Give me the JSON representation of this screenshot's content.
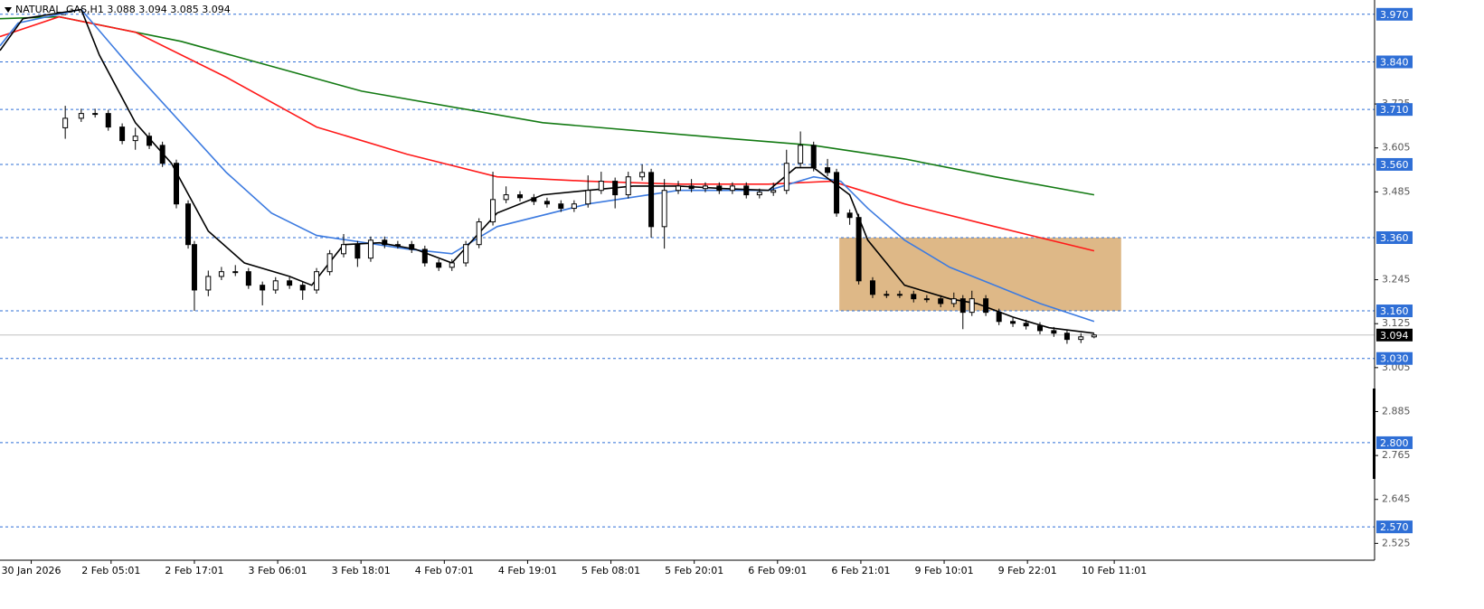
{
  "chart_data": {
    "type": "candlestick",
    "title": "NATURAL_GAS,H1  3.088 3.094 3.085 3.094",
    "xlim": [
      0,
      198
    ],
    "ylim": [
      2.479,
      4.009
    ],
    "xticks": [
      {
        "value": 4.5,
        "label": "30 Jan 2026"
      },
      {
        "value": 16,
        "label": "2 Feb 05:01"
      },
      {
        "value": 28,
        "label": "2 Feb 17:01"
      },
      {
        "value": 40,
        "label": "3 Feb 06:01"
      },
      {
        "value": 52,
        "label": "3 Feb 18:01"
      },
      {
        "value": 64,
        "label": "4 Feb 07:01"
      },
      {
        "value": 76,
        "label": "4 Feb 19:01"
      },
      {
        "value": 88,
        "label": "5 Feb 08:01"
      },
      {
        "value": 100,
        "label": "5 Feb 20:01"
      },
      {
        "value": 112,
        "label": "6 Feb 09:01"
      },
      {
        "value": 124,
        "label": "6 Feb 21:01"
      },
      {
        "value": 136,
        "label": "9 Feb 10:01"
      },
      {
        "value": 148,
        "label": "9 Feb 22:01"
      },
      {
        "value": 160.5,
        "label": "10 Feb 11:01"
      }
    ],
    "yticks": [
      3.725,
      3.605,
      3.485,
      3.245,
      3.125,
      3.005,
      2.885,
      2.765,
      2.645,
      2.525
    ],
    "levels": [
      {
        "value": 3.97,
        "label": "3.970"
      },
      {
        "value": 3.84,
        "label": "3.840"
      },
      {
        "value": 3.71,
        "label": "3.710"
      },
      {
        "value": 3.56,
        "label": "3.560"
      },
      {
        "value": 3.36,
        "label": "3.360"
      },
      {
        "value": 3.16,
        "label": "3.160"
      },
      {
        "value": 3.03,
        "label": "3.030"
      },
      {
        "value": 2.8,
        "label": "2.800"
      },
      {
        "value": 2.57,
        "label": "2.570"
      }
    ],
    "level_color": "#2f6fd6",
    "last_price": 3.094,
    "zone": {
      "x": [
        120.9,
        161.5
      ],
      "y": [
        3.16,
        3.36
      ],
      "color": "#deb887"
    },
    "up_color": "#ffffff",
    "down_color": "#000000",
    "x": [
      9.4,
      11.7,
      13.7,
      15.6,
      17.6,
      19.5,
      21.5,
      23.4,
      25.4,
      27.1,
      28.0,
      30.0,
      31.9,
      33.9,
      35.8,
      37.8,
      39.7,
      41.7,
      43.6,
      45.6,
      47.5,
      49.5,
      51.5,
      53.4,
      55.4,
      57.3,
      59.3,
      61.2,
      63.2,
      65.1,
      67.1,
      69.0,
      71.0,
      72.9,
      74.9,
      76.9,
      78.8,
      80.8,
      82.7,
      84.7,
      86.6,
      88.6,
      90.5,
      92.5,
      93.8,
      95.7,
      97.7,
      99.6,
      101.6,
      103.6,
      105.5,
      107.5,
      109.4,
      111.4,
      113.3,
      115.3,
      117.2,
      119.2,
      120.5,
      122.4,
      123.7,
      125.7,
      127.7,
      129.6,
      131.6,
      133.5,
      135.5,
      137.4,
      138.7,
      140.0,
      142.0,
      143.9,
      145.9,
      147.8,
      149.8,
      151.8,
      153.7,
      155.7,
      157.6
    ],
    "candles": [
      [
        3.66,
        3.72,
        3.63,
        3.686
      ],
      [
        3.686,
        3.712,
        3.676,
        3.699
      ],
      [
        3.699,
        3.712,
        3.688,
        3.699
      ],
      [
        3.699,
        3.709,
        3.652,
        3.662
      ],
      [
        3.662,
        3.672,
        3.615,
        3.625
      ],
      [
        3.625,
        3.66,
        3.6,
        3.637
      ],
      [
        3.637,
        3.647,
        3.602,
        3.612
      ],
      [
        3.612,
        3.622,
        3.553,
        3.563
      ],
      [
        3.563,
        3.573,
        3.44,
        3.452
      ],
      [
        3.452,
        3.462,
        3.33,
        3.341
      ],
      [
        3.341,
        3.351,
        3.16,
        3.217
      ],
      [
        3.217,
        3.27,
        3.2,
        3.254
      ],
      [
        3.254,
        3.28,
        3.244,
        3.267
      ],
      [
        3.267,
        3.285,
        3.255,
        3.267
      ],
      [
        3.267,
        3.277,
        3.22,
        3.23
      ],
      [
        3.23,
        3.24,
        3.175,
        3.217
      ],
      [
        3.217,
        3.252,
        3.207,
        3.242
      ],
      [
        3.242,
        3.252,
        3.22,
        3.23
      ],
      [
        3.23,
        3.24,
        3.19,
        3.217
      ],
      [
        3.217,
        3.277,
        3.207,
        3.267
      ],
      [
        3.267,
        3.326,
        3.257,
        3.316
      ],
      [
        3.316,
        3.37,
        3.306,
        3.341
      ],
      [
        3.341,
        3.351,
        3.28,
        3.304
      ],
      [
        3.304,
        3.363,
        3.294,
        3.353
      ],
      [
        3.353,
        3.363,
        3.331,
        3.341
      ],
      [
        3.341,
        3.351,
        3.33,
        3.341
      ],
      [
        3.341,
        3.351,
        3.318,
        3.328
      ],
      [
        3.328,
        3.338,
        3.281,
        3.291
      ],
      [
        3.291,
        3.301,
        3.269,
        3.279
      ],
      [
        3.279,
        3.301,
        3.269,
        3.291
      ],
      [
        3.291,
        3.351,
        3.281,
        3.341
      ],
      [
        3.341,
        3.413,
        3.331,
        3.403
      ],
      [
        3.403,
        3.54,
        3.393,
        3.464
      ],
      [
        3.464,
        3.5,
        3.454,
        3.477
      ],
      [
        3.477,
        3.487,
        3.459,
        3.469
      ],
      [
        3.469,
        3.479,
        3.449,
        3.459
      ],
      [
        3.459,
        3.469,
        3.442,
        3.452
      ],
      [
        3.452,
        3.462,
        3.43,
        3.44
      ],
      [
        3.44,
        3.462,
        3.43,
        3.452
      ],
      [
        3.452,
        3.53,
        3.442,
        3.489
      ],
      [
        3.489,
        3.54,
        3.479,
        3.514
      ],
      [
        3.514,
        3.524,
        3.44,
        3.477
      ],
      [
        3.477,
        3.54,
        3.467,
        3.526
      ],
      [
        3.526,
        3.56,
        3.516,
        3.538
      ],
      [
        3.538,
        3.548,
        3.36,
        3.39
      ],
      [
        3.39,
        3.52,
        3.33,
        3.489
      ],
      [
        3.489,
        3.515,
        3.479,
        3.501
      ],
      [
        3.501,
        3.52,
        3.484,
        3.494
      ],
      [
        3.494,
        3.511,
        3.484,
        3.501
      ],
      [
        3.501,
        3.511,
        3.479,
        3.489
      ],
      [
        3.489,
        3.511,
        3.479,
        3.501
      ],
      [
        3.501,
        3.511,
        3.467,
        3.477
      ],
      [
        3.477,
        3.494,
        3.467,
        3.484
      ],
      [
        3.484,
        3.51,
        3.474,
        3.489
      ],
      [
        3.489,
        3.6,
        3.479,
        3.563
      ],
      [
        3.563,
        3.65,
        3.553,
        3.612
      ],
      [
        3.612,
        3.622,
        3.541,
        3.551
      ],
      [
        3.551,
        3.575,
        3.528,
        3.538
      ],
      [
        3.538,
        3.548,
        3.417,
        3.427
      ],
      [
        3.427,
        3.437,
        3.395,
        3.415
      ],
      [
        3.415,
        3.425,
        3.232,
        3.242
      ],
      [
        3.242,
        3.252,
        3.195,
        3.205
      ],
      [
        3.205,
        3.215,
        3.195,
        3.205
      ],
      [
        3.205,
        3.215,
        3.195,
        3.205
      ],
      [
        3.205,
        3.215,
        3.183,
        3.193
      ],
      [
        3.193,
        3.203,
        3.183,
        3.193
      ],
      [
        3.193,
        3.203,
        3.17,
        3.18
      ],
      [
        3.18,
        3.21,
        3.17,
        3.193
      ],
      [
        3.193,
        3.203,
        3.11,
        3.156
      ],
      [
        3.156,
        3.215,
        3.146,
        3.193
      ],
      [
        3.193,
        3.203,
        3.146,
        3.156
      ],
      [
        3.156,
        3.166,
        3.121,
        3.131
      ],
      [
        3.131,
        3.141,
        3.116,
        3.126
      ],
      [
        3.126,
        3.136,
        3.109,
        3.119
      ],
      [
        3.119,
        3.129,
        3.096,
        3.106
      ],
      [
        3.106,
        3.116,
        3.089,
        3.099
      ],
      [
        3.099,
        3.109,
        3.07,
        3.082
      ],
      [
        3.082,
        3.099,
        3.072,
        3.089
      ],
      [
        3.089,
        3.097,
        3.085,
        3.094
      ]
    ],
    "lines": [
      {
        "color": "#137a13",
        "x": [
          0,
          8.5,
          26.1,
          52.1,
          78.2,
          104.2,
          117.2,
          130.3,
          143.3,
          157.6
        ],
        "values": [
          3.958,
          3.963,
          3.896,
          3.76,
          3.674,
          3.632,
          3.612,
          3.575,
          3.526,
          3.477
        ]
      },
      {
        "color": "#ff1a1a",
        "x": [
          0,
          8.5,
          19.5,
          32.6,
          45.6,
          58.6,
          71.6,
          84.7,
          97.7,
          110.7,
          119.8,
          130.3,
          143.3,
          157.6
        ],
        "values": [
          3.909,
          3.963,
          3.921,
          3.798,
          3.662,
          3.588,
          3.526,
          3.514,
          3.506,
          3.506,
          3.514,
          3.452,
          3.39,
          3.324
        ]
      },
      {
        "color": "#3d7be0",
        "x": [
          0,
          2.6,
          11.7,
          19.5,
          32.6,
          39.1,
          45.6,
          58.6,
          65.1,
          71.6,
          84.7,
          97.7,
          110.7,
          117.2,
          121.1,
          125.0,
          130.3,
          136.8,
          143.3,
          149.8,
          157.6
        ],
        "values": [
          3.884,
          3.946,
          3.983,
          3.81,
          3.538,
          3.427,
          3.366,
          3.329,
          3.316,
          3.39,
          3.452,
          3.489,
          3.489,
          3.526,
          3.514,
          3.44,
          3.353,
          3.279,
          3.23,
          3.18,
          3.131
        ]
      },
      {
        "color": "#000000",
        "x": [
          0,
          3.3,
          11.7,
          14.3,
          19.5,
          24.7,
          30.0,
          35.2,
          41.7,
          44.9,
          49.5,
          54.7,
          59.9,
          65.1,
          71.6,
          78.2,
          84.7,
          91.2,
          97.7,
          104.2,
          110.7,
          114.6,
          117.2,
          119.8,
          122.4,
          125.0,
          130.3,
          136.8,
          140.7,
          145.9,
          151.1,
          157.6
        ],
        "values": [
          3.871,
          3.958,
          3.983,
          3.859,
          3.674,
          3.563,
          3.378,
          3.291,
          3.254,
          3.23,
          3.341,
          3.346,
          3.328,
          3.291,
          3.427,
          3.477,
          3.489,
          3.501,
          3.501,
          3.494,
          3.489,
          3.551,
          3.551,
          3.514,
          3.477,
          3.353,
          3.23,
          3.193,
          3.18,
          3.143,
          3.114,
          3.099
        ]
      }
    ]
  }
}
